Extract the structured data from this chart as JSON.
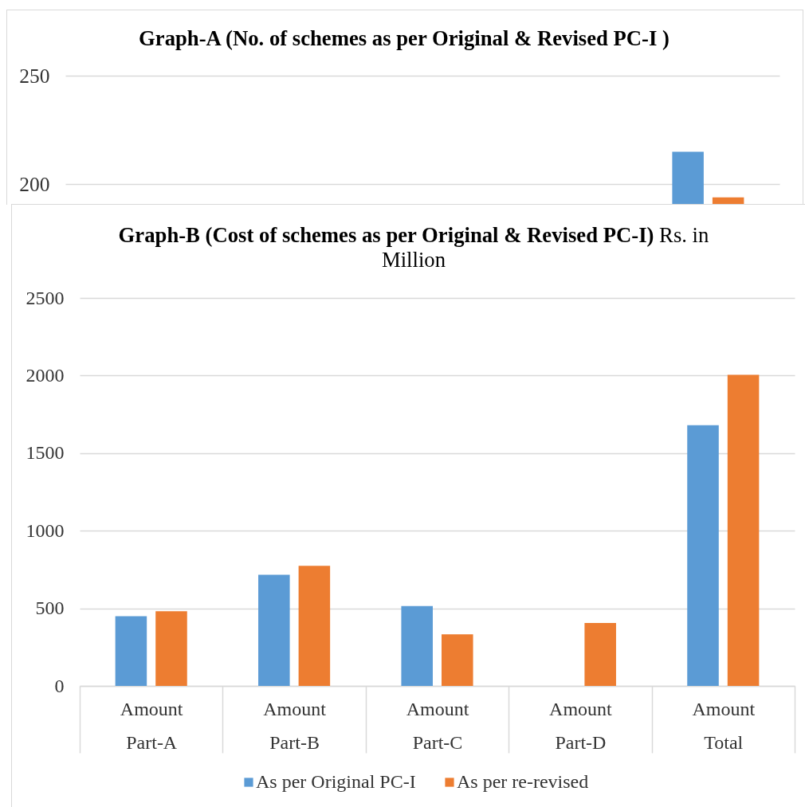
{
  "chart_data": [
    {
      "type": "bar",
      "title": "Graph-A (No. of schemes as per Original & Revised PC-I )",
      "categories": [
        null,
        null,
        null,
        null,
        null
      ],
      "series": [
        {
          "color": "#5b9bd5",
          "values": [
            null,
            null,
            null,
            null,
            215
          ]
        },
        {
          "color": "#ed7d31",
          "values": [
            null,
            null,
            null,
            null,
            194
          ]
        }
      ],
      "ylim": [
        191,
        250
      ],
      "yticks": [
        200,
        250
      ],
      "grid": "y",
      "tick_labels": "y"
    },
    {
      "type": "bar",
      "title": "Graph-B (Cost of schemes as per Original & Revised PC-I) Rs. in Million",
      "categories": [
        "Amount\nPart-A",
        "Amount\nPart-B",
        "Amount\nPart-C",
        "Amount\nPart-D",
        "Amount\nTotal"
      ],
      "series": [
        {
          "name": "As per Original PC-I",
          "color": "#5b9bd5",
          "values": [
            449,
            716,
            515,
            null,
            1680
          ]
        },
        {
          "name": "As per re-revised",
          "color": "#ed7d31",
          "values": [
            481,
            774,
            332,
            405,
            2005
          ]
        }
      ],
      "ylim": [
        0,
        2500
      ],
      "yticks": [
        0,
        500,
        1000,
        1500,
        2000,
        2500
      ],
      "grid": "y",
      "legend": "bottom"
    }
  ]
}
